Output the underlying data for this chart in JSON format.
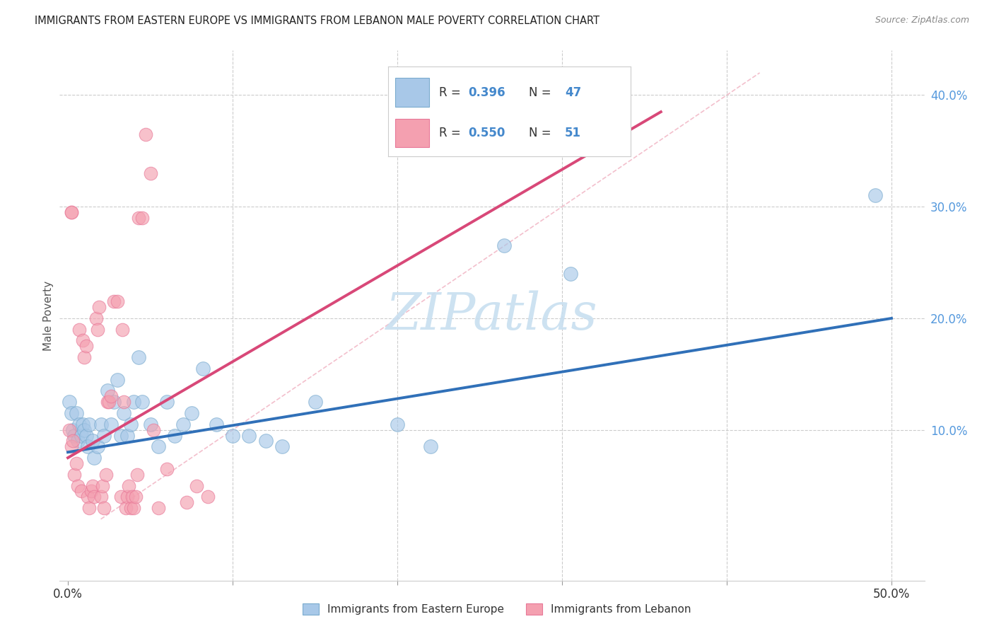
{
  "title": "IMMIGRANTS FROM EASTERN EUROPE VS IMMIGRANTS FROM LEBANON MALE POVERTY CORRELATION CHART",
  "source": "Source: ZipAtlas.com",
  "ylabel": "Male Poverty",
  "xlim": [
    -0.005,
    0.52
  ],
  "ylim": [
    -0.035,
    0.44
  ],
  "background_color": "#ffffff",
  "grid_color": "#cccccc",
  "blue_R": 0.396,
  "blue_N": 47,
  "pink_R": 0.55,
  "pink_N": 51,
  "blue_color": "#a8c8e8",
  "pink_color": "#f4a0b0",
  "blue_edge_color": "#7aabce",
  "pink_edge_color": "#e87898",
  "blue_line_color": "#3070b8",
  "pink_line_color": "#d84878",
  "blue_scatter": [
    [
      0.001,
      0.125
    ],
    [
      0.002,
      0.115
    ],
    [
      0.003,
      0.1
    ],
    [
      0.004,
      0.095
    ],
    [
      0.005,
      0.115
    ],
    [
      0.006,
      0.09
    ],
    [
      0.007,
      0.105
    ],
    [
      0.008,
      0.095
    ],
    [
      0.009,
      0.105
    ],
    [
      0.01,
      0.1
    ],
    [
      0.011,
      0.095
    ],
    [
      0.012,
      0.085
    ],
    [
      0.013,
      0.105
    ],
    [
      0.015,
      0.09
    ],
    [
      0.016,
      0.075
    ],
    [
      0.018,
      0.085
    ],
    [
      0.02,
      0.105
    ],
    [
      0.022,
      0.095
    ],
    [
      0.024,
      0.135
    ],
    [
      0.026,
      0.105
    ],
    [
      0.028,
      0.125
    ],
    [
      0.03,
      0.145
    ],
    [
      0.032,
      0.095
    ],
    [
      0.034,
      0.115
    ],
    [
      0.036,
      0.095
    ],
    [
      0.038,
      0.105
    ],
    [
      0.04,
      0.125
    ],
    [
      0.043,
      0.165
    ],
    [
      0.045,
      0.125
    ],
    [
      0.05,
      0.105
    ],
    [
      0.055,
      0.085
    ],
    [
      0.06,
      0.125
    ],
    [
      0.065,
      0.095
    ],
    [
      0.07,
      0.105
    ],
    [
      0.075,
      0.115
    ],
    [
      0.082,
      0.155
    ],
    [
      0.09,
      0.105
    ],
    [
      0.1,
      0.095
    ],
    [
      0.11,
      0.095
    ],
    [
      0.12,
      0.09
    ],
    [
      0.13,
      0.085
    ],
    [
      0.15,
      0.125
    ],
    [
      0.2,
      0.105
    ],
    [
      0.22,
      0.085
    ],
    [
      0.265,
      0.265
    ],
    [
      0.305,
      0.24
    ],
    [
      0.49,
      0.31
    ]
  ],
  "pink_scatter": [
    [
      0.001,
      0.1
    ],
    [
      0.002,
      0.085
    ],
    [
      0.003,
      0.09
    ],
    [
      0.004,
      0.06
    ],
    [
      0.005,
      0.07
    ],
    [
      0.006,
      0.05
    ],
    [
      0.007,
      0.19
    ],
    [
      0.008,
      0.045
    ],
    [
      0.009,
      0.18
    ],
    [
      0.01,
      0.165
    ],
    [
      0.011,
      0.175
    ],
    [
      0.012,
      0.04
    ],
    [
      0.013,
      0.03
    ],
    [
      0.014,
      0.045
    ],
    [
      0.015,
      0.05
    ],
    [
      0.016,
      0.04
    ],
    [
      0.017,
      0.2
    ],
    [
      0.018,
      0.19
    ],
    [
      0.019,
      0.21
    ],
    [
      0.02,
      0.04
    ],
    [
      0.021,
      0.05
    ],
    [
      0.022,
      0.03
    ],
    [
      0.023,
      0.06
    ],
    [
      0.024,
      0.125
    ],
    [
      0.025,
      0.125
    ],
    [
      0.026,
      0.13
    ],
    [
      0.028,
      0.215
    ],
    [
      0.03,
      0.215
    ],
    [
      0.032,
      0.04
    ],
    [
      0.033,
      0.19
    ],
    [
      0.034,
      0.125
    ],
    [
      0.035,
      0.03
    ],
    [
      0.036,
      0.04
    ],
    [
      0.037,
      0.05
    ],
    [
      0.038,
      0.03
    ],
    [
      0.039,
      0.04
    ],
    [
      0.04,
      0.03
    ],
    [
      0.041,
      0.04
    ],
    [
      0.042,
      0.06
    ],
    [
      0.043,
      0.29
    ],
    [
      0.045,
      0.29
    ],
    [
      0.047,
      0.365
    ],
    [
      0.05,
      0.33
    ],
    [
      0.052,
      0.1
    ],
    [
      0.055,
      0.03
    ],
    [
      0.06,
      0.065
    ],
    [
      0.072,
      0.035
    ],
    [
      0.078,
      0.05
    ],
    [
      0.085,
      0.04
    ],
    [
      0.002,
      0.295
    ],
    [
      0.002,
      0.295
    ]
  ],
  "blue_line": [
    [
      0.0,
      0.08
    ],
    [
      0.5,
      0.2
    ]
  ],
  "pink_line": [
    [
      0.0,
      0.075
    ],
    [
      0.36,
      0.385
    ]
  ],
  "diag_line": [
    [
      0.02,
      0.02
    ],
    [
      0.42,
      0.42
    ]
  ],
  "watermark_text": "ZIPatlas",
  "watermark_color": "#c8dff0",
  "legend_blue_text": "R =  0.396   N =  47",
  "legend_pink_text": "R =  0.550   N =  51",
  "legend_text_color": "#4488cc",
  "legend_bold_numbers": true,
  "bottom_label_blue": "Immigrants from Eastern Europe",
  "bottom_label_pink": "Immigrants from Lebanon"
}
